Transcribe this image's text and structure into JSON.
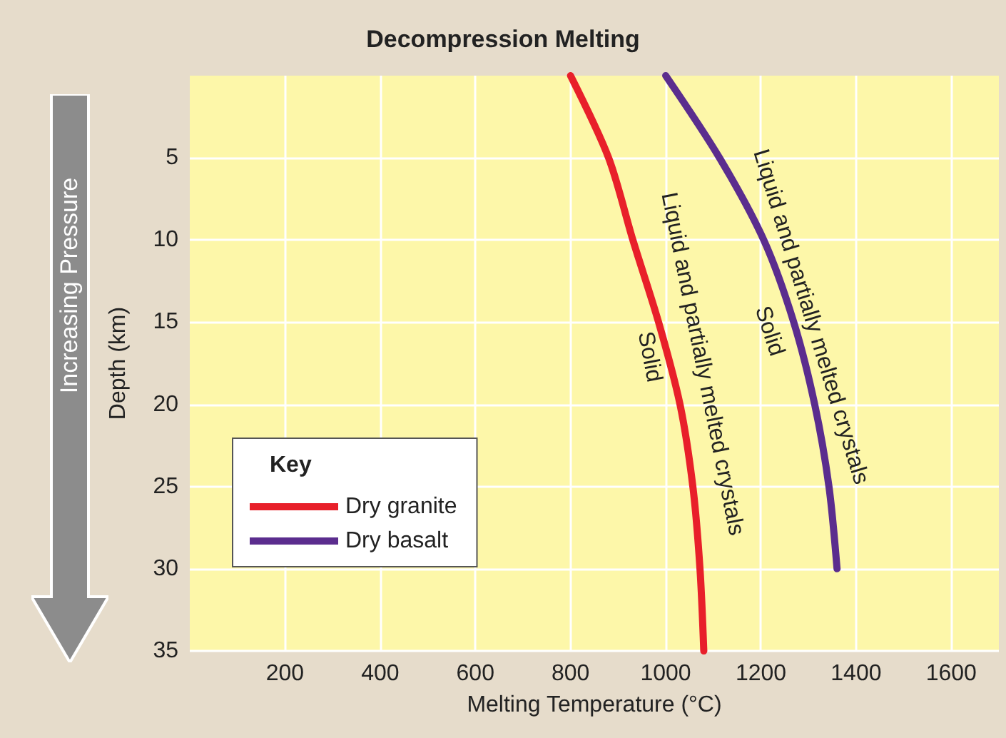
{
  "chart_data": {
    "type": "line",
    "title": "Decompression Melting",
    "xlabel": "Melting Temperature (°C)",
    "ylabel": "Depth (km)",
    "legend_title": "Key",
    "series": [
      {
        "name": "Dry granite",
        "color": "#e8202a",
        "x": [
          800,
          880,
          931,
          985,
          1030,
          1057,
          1072,
          1080
        ],
        "values": [
          0,
          5,
          10,
          15,
          20,
          25,
          30,
          35
        ]
      },
      {
        "name": "Dry basalt",
        "color": "#5b2d8e",
        "x": [
          1000,
          1113,
          1206,
          1269,
          1313,
          1343,
          1360
        ],
        "values": [
          0,
          5,
          10,
          15,
          20,
          25,
          30
        ]
      }
    ],
    "xlim": [
      0,
      1700
    ],
    "xticks": [
      200,
      400,
      600,
      800,
      1000,
      1200,
      1400,
      1600
    ],
    "ylim": [
      35,
      0
    ],
    "yticks": [
      5,
      10,
      15,
      20,
      25,
      30,
      35
    ],
    "grid": true,
    "legend": "bottom left",
    "marker": "none",
    "line_style": "solid",
    "annotations": [
      "Increasing Pressure",
      "Liquid and partially melted crystals",
      "Solid",
      "Liquid and partially melted crystals",
      "Solid"
    ]
  }
}
